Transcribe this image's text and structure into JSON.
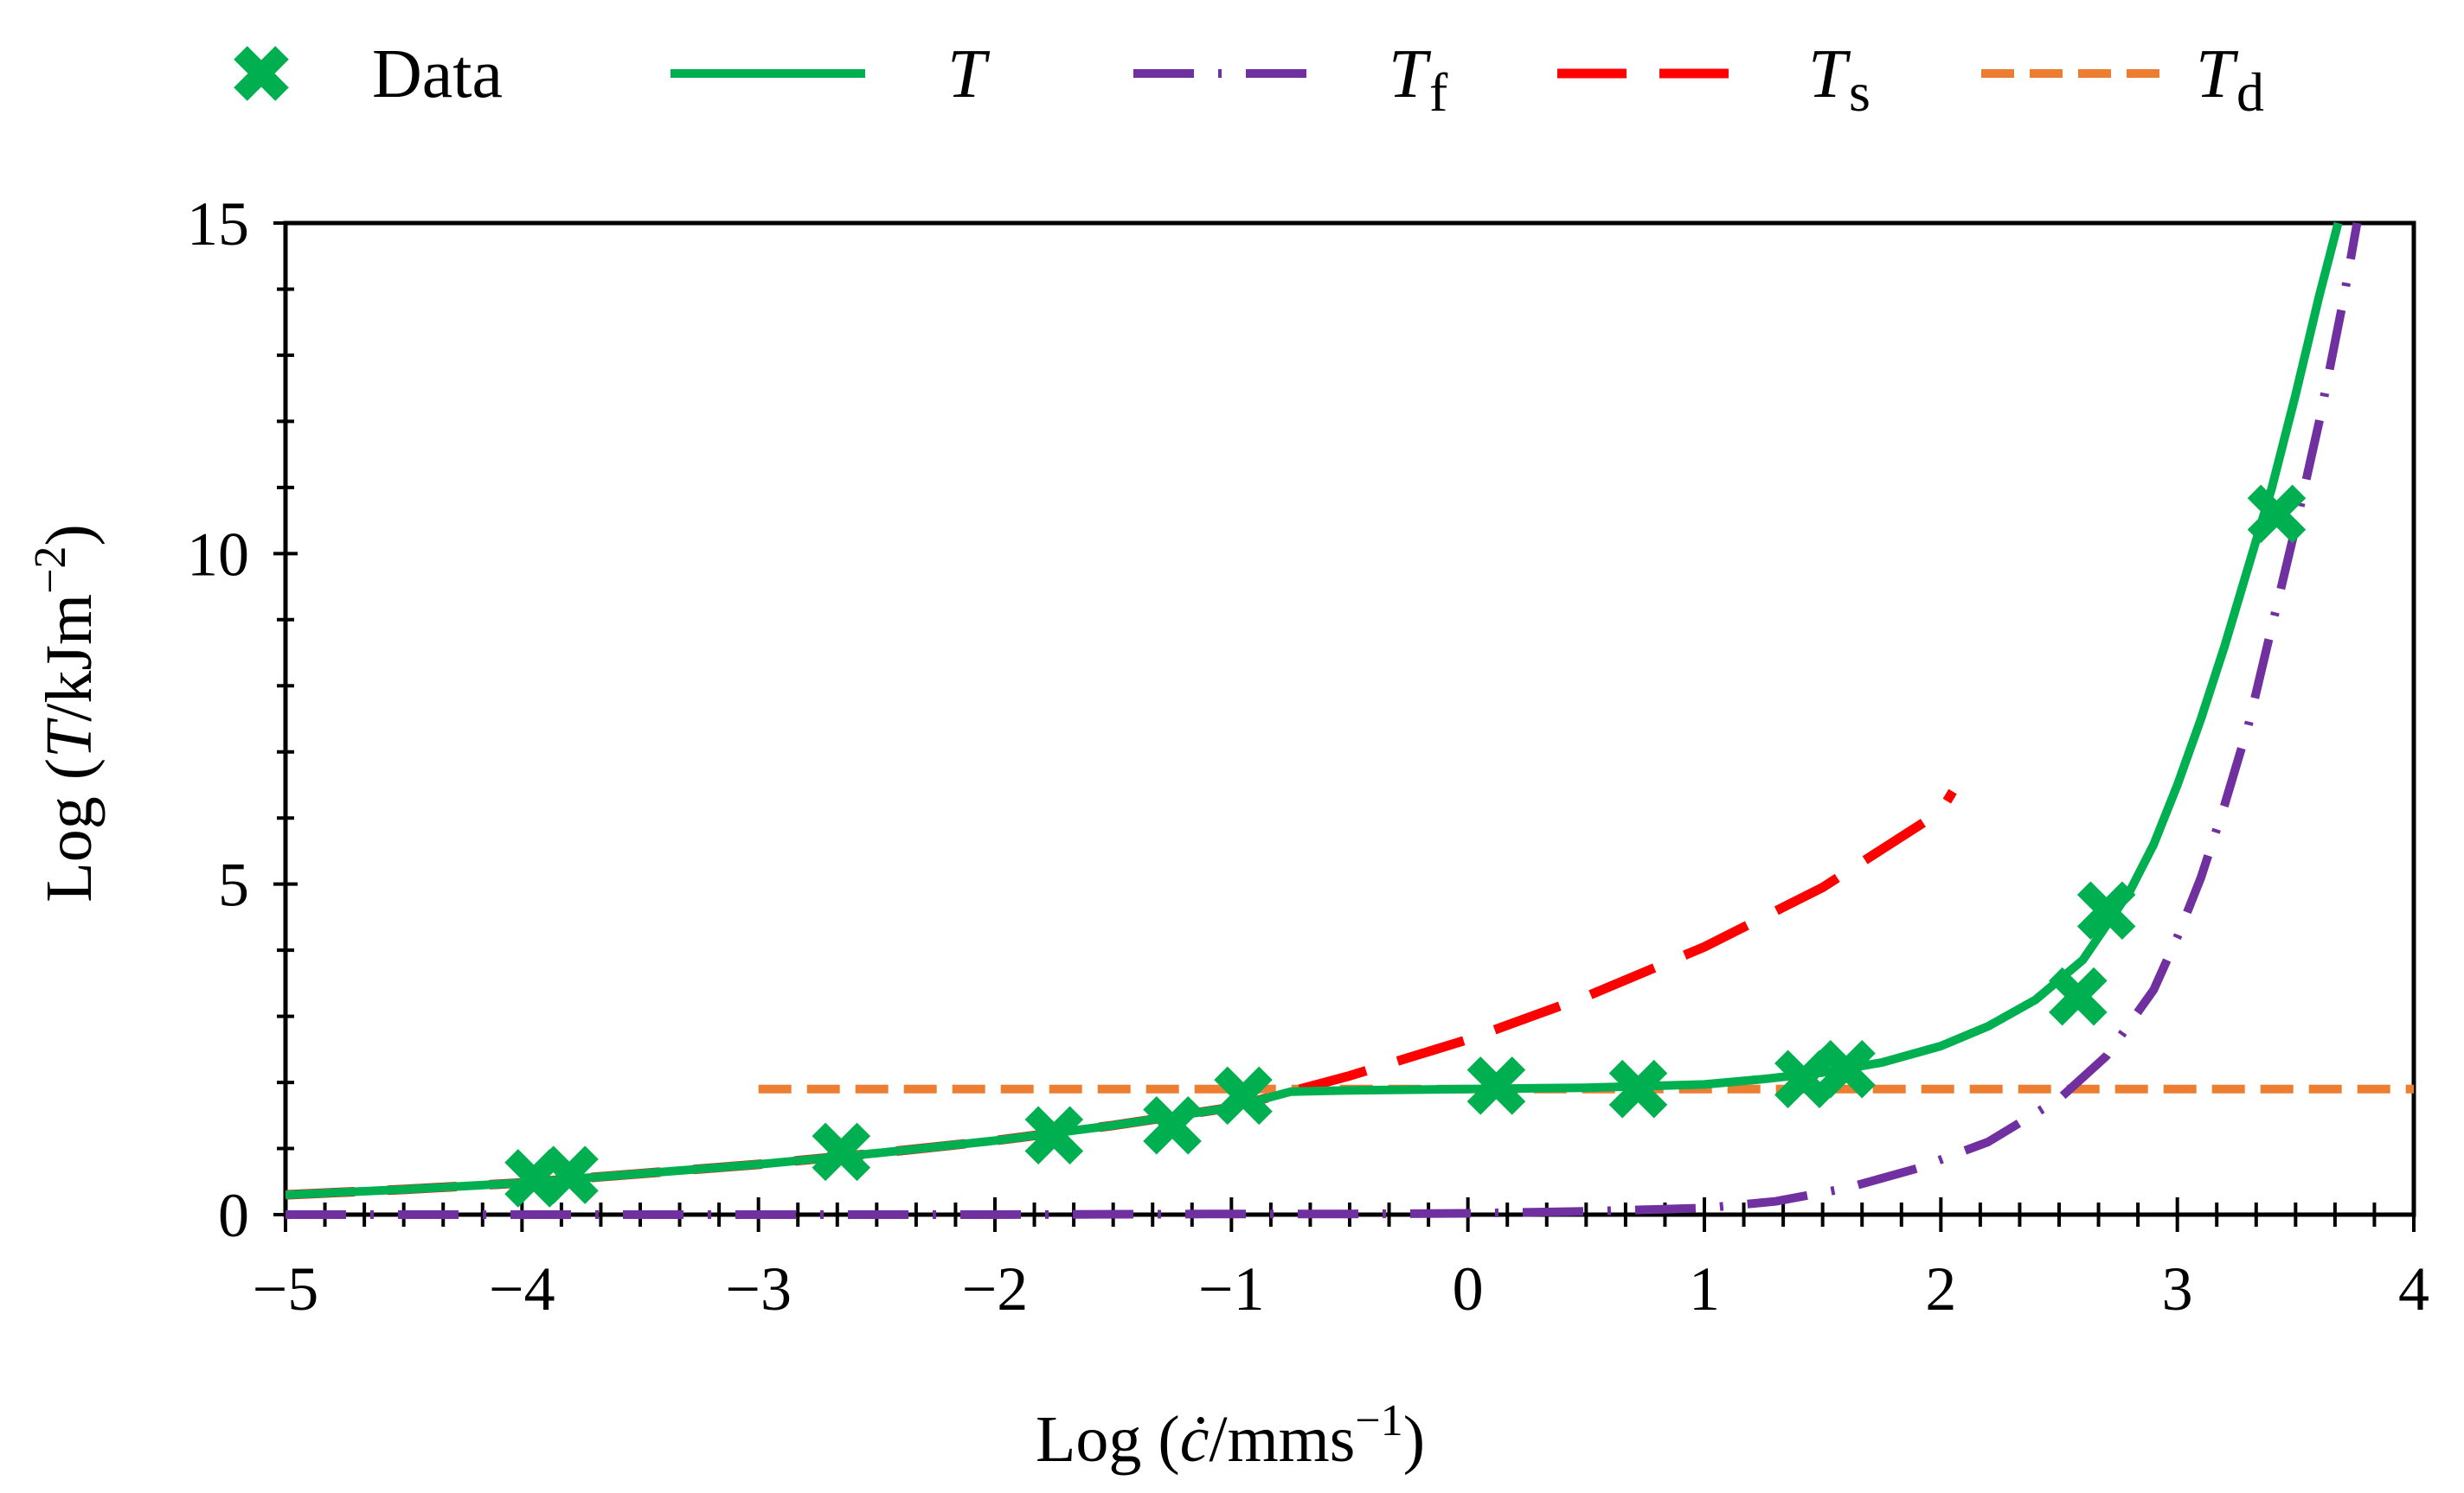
{
  "chart_data": {
    "type": "line",
    "title": "",
    "xlabel": {
      "prefix": "Log (",
      "var": "ċ",
      "suffix": "/mms",
      "sup": "−1",
      "close": ")"
    },
    "ylabel": {
      "prefix": "Log (",
      "var": "T",
      "suffix": "/kJm",
      "sup": "−2",
      "close": ")"
    },
    "xlim": [
      -5,
      4
    ],
    "ylim": [
      0,
      15
    ],
    "x_ticks": [
      -5,
      -4,
      -3,
      -2,
      -1,
      0,
      1,
      2,
      3,
      4
    ],
    "x_tick_labels": [
      "−5",
      "−4",
      "−3",
      "−2",
      "−1",
      "0",
      "1",
      "2",
      "3",
      "4"
    ],
    "y_ticks": [
      0,
      5,
      10,
      15
    ],
    "y_tick_labels": [
      "0",
      "5",
      "10",
      "15"
    ],
    "legend_position": "top",
    "legend": [
      {
        "key": "data",
        "label": "Data",
        "sub": ""
      },
      {
        "key": "T",
        "label": "T",
        "sub": ""
      },
      {
        "key": "Tf",
        "label": "T",
        "sub": "f"
      },
      {
        "key": "Ts",
        "label": "T",
        "sub": "s"
      },
      {
        "key": "Td",
        "label": "T",
        "sub": "d"
      }
    ],
    "colors": {
      "data": "#00B050",
      "T": "#00B050",
      "Tf": "#7030A0",
      "Ts": "#FF0000",
      "Td": "#ED7D31",
      "axis": "#000000"
    },
    "data_points": [
      {
        "x": -3.95,
        "y": 0.55
      },
      {
        "x": -3.8,
        "y": 0.6
      },
      {
        "x": -2.65,
        "y": 0.95
      },
      {
        "x": -1.75,
        "y": 1.2
      },
      {
        "x": -1.25,
        "y": 1.35
      },
      {
        "x": -0.95,
        "y": 1.8
      },
      {
        "x": 0.12,
        "y": 1.95
      },
      {
        "x": 0.72,
        "y": 1.9
      },
      {
        "x": 1.42,
        "y": 2.05
      },
      {
        "x": 1.6,
        "y": 2.2
      },
      {
        "x": 2.58,
        "y": 3.3
      },
      {
        "x": 2.7,
        "y": 4.6
      },
      {
        "x": 3.42,
        "y": 10.6
      }
    ],
    "series": [
      {
        "name": "T",
        "x": [
          -5,
          -4.5,
          -4,
          -3.5,
          -3,
          -2.5,
          -2,
          -1.5,
          -1,
          -0.75,
          -0.5,
          0,
          0.5,
          1,
          1.25,
          1.5,
          1.75,
          2,
          2.2,
          2.4,
          2.6,
          2.8,
          2.9,
          3,
          3.1,
          3.2,
          3.3,
          3.4,
          3.5,
          3.6,
          3.68
        ],
        "y": [
          0.3,
          0.38,
          0.48,
          0.62,
          0.76,
          0.93,
          1.12,
          1.35,
          1.62,
          1.86,
          1.88,
          1.9,
          1.92,
          1.97,
          2.05,
          2.15,
          2.3,
          2.55,
          2.85,
          3.25,
          3.85,
          4.9,
          5.6,
          6.5,
          7.5,
          8.6,
          9.8,
          11.0,
          12.4,
          13.9,
          15.0
        ]
      },
      {
        "name": "Tf",
        "x": [
          -5,
          -4,
          -3,
          -2,
          -1,
          -0.5,
          0,
          0.5,
          1,
          1.3,
          1.6,
          1.9,
          2.2,
          2.5,
          2.7,
          2.9,
          3.0,
          3.1,
          3.2,
          3.3,
          3.4,
          3.5,
          3.6,
          3.7,
          3.76
        ],
        "y": [
          0,
          0,
          0,
          0,
          0.01,
          0.01,
          0.02,
          0.05,
          0.1,
          0.2,
          0.4,
          0.7,
          1.1,
          1.75,
          2.4,
          3.4,
          4.2,
          5.1,
          6.2,
          7.4,
          8.9,
          10.4,
          12.0,
          13.8,
          15.0
        ]
      },
      {
        "name": "Ts",
        "x": [
          -5,
          -4.5,
          -4,
          -3.5,
          -3,
          -2.5,
          -2,
          -1.5,
          -1,
          -0.5,
          0,
          0.5,
          1,
          1.5,
          2,
          2.05
        ],
        "y": [
          0.3,
          0.38,
          0.48,
          0.62,
          0.76,
          0.93,
          1.12,
          1.35,
          1.62,
          2.1,
          2.65,
          3.3,
          4.05,
          4.95,
          6.1,
          6.4
        ]
      },
      {
        "name": "Td",
        "x": [
          -3,
          4
        ],
        "y": [
          1.9,
          1.9
        ]
      }
    ]
  }
}
